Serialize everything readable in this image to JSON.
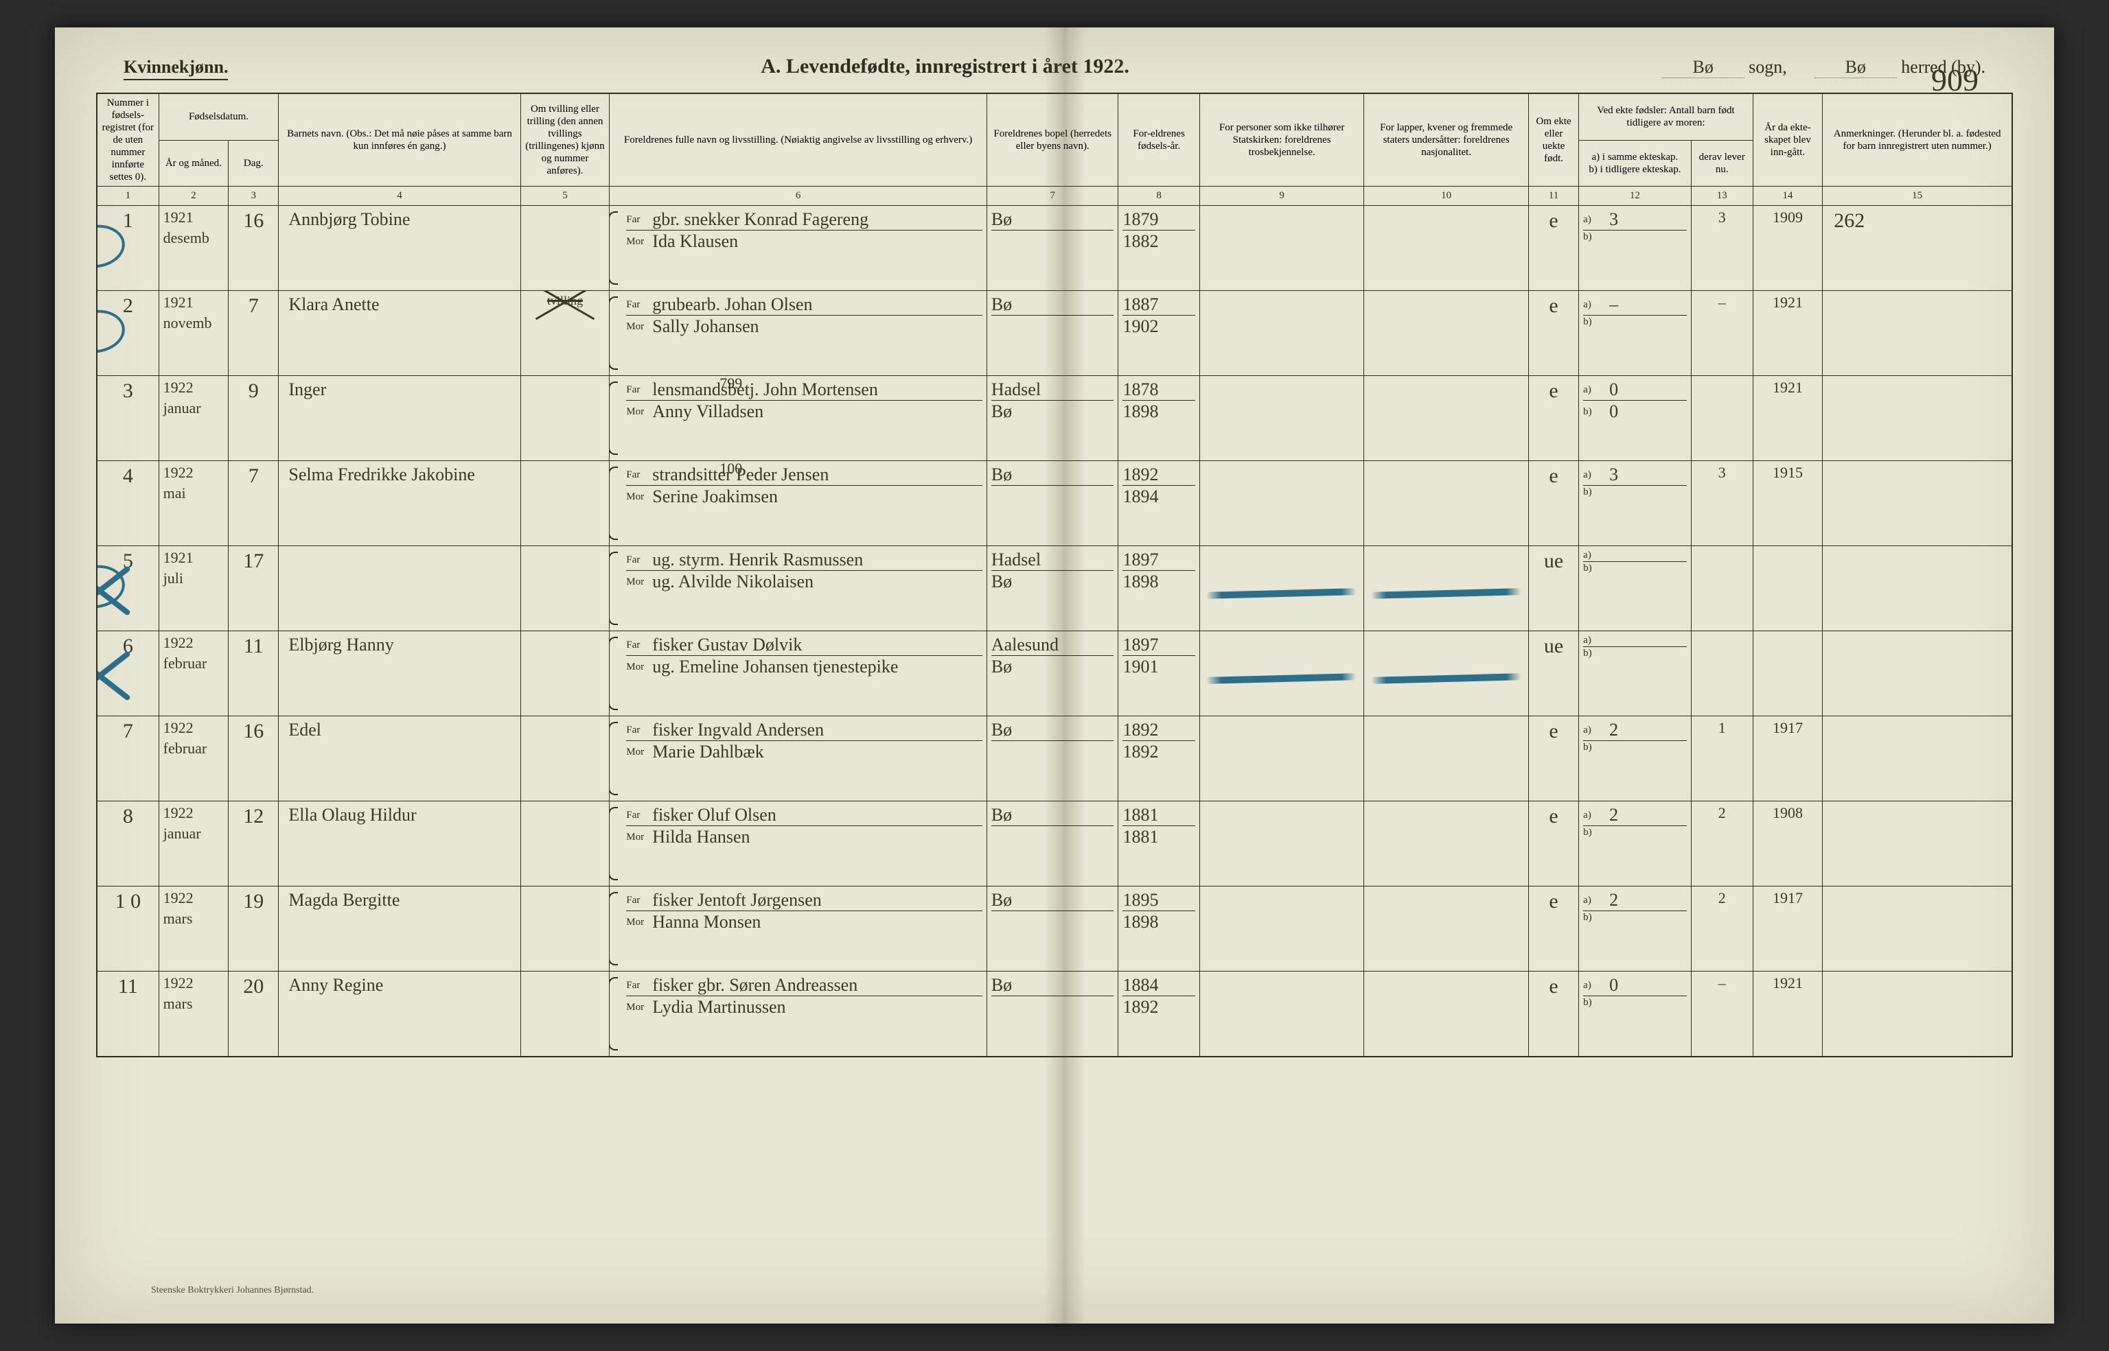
{
  "colors": {
    "paper": "#e8e6d4",
    "ink_print": "#2f2d20",
    "ink_hand": "#3a3826",
    "blue_pencil": "#2b6f8a",
    "page_bg": "#2b2b2b"
  },
  "header": {
    "gender_label": "Kvinnekjønn.",
    "title_prefix": "A. Levendefødte, innregistrert i året 192",
    "title_year_suffix": "2",
    "title_period": ".",
    "sogn_value": "Bø",
    "sogn_label": "sogn,",
    "herred_value": "Bø",
    "herred_label": "herred (by).",
    "page_corner": "909"
  },
  "footer": {
    "printer": "Steenske Boktrykkeri Johannes Bjørnstad."
  },
  "columns": {
    "c1": "Nummer i fødsels-registret (for de uten nummer innførte settes 0).",
    "c2_group": "Fødselsdatum.",
    "c2a": "År og måned.",
    "c2b": "Dag.",
    "c4": "Barnets navn.\n(Obs.: Det må nøie påses at samme barn kun innføres én gang.)",
    "c5": "Om tvilling eller trilling (den annen tvillings (trillingenes) kjønn og nummer anføres).",
    "c6": "Foreldrenes fulle navn og livsstilling.\n(Nøiaktig angivelse av livsstilling og erhverv.)",
    "c7": "Foreldrenes bopel (herredets eller byens navn).",
    "c8": "For-eldrenes fødsels-år.",
    "c9": "For personer som ikke tilhører Statskirken: foreldrenes trosbekjennelse.",
    "c10": "For lapper, kvener og fremmede staters undersåtter: foreldrenes nasjonalitet.",
    "c11": "Om ekte eller uekte født.",
    "c12_group": "Ved ekte fødsler: Antall barn født tidligere av moren:",
    "c12a": "a) i samme ekteskap.",
    "c12b": "b) i tidligere ekteskap.",
    "c13": "derav lever nu.",
    "c14": "År da ekte-skapet blev inn-gått.",
    "c15": "Anmerkninger.\n(Herunder bl. a. fødested for barn innregistrert uten nummer.)",
    "far_label": "Far",
    "mor_label": "Mor",
    "a_label": "a)",
    "b_label": "b)"
  },
  "colnums": [
    "1",
    "2",
    "3",
    "4",
    "5",
    "6",
    "7",
    "8",
    "9",
    "10",
    "11",
    "12",
    "13",
    "14",
    "15"
  ],
  "rows": [
    {
      "n": "1",
      "circled": true,
      "x": false,
      "year": "1921",
      "month": "desemb",
      "day": "16",
      "child": "Annbjørg Tobine",
      "twin": "",
      "far": "gbr. snekker Konrad Fagereng",
      "mor": "Ida Klausen",
      "res": "Bø",
      "far_yr": "1879",
      "mor_yr": "1882",
      "leg": "e",
      "ch_a": "3",
      "ch_b": "",
      "live": "3",
      "mar": "1909",
      "note": "262",
      "strike_910": false
    },
    {
      "n": "2",
      "circled": true,
      "x": false,
      "year": "1921",
      "month": "novemb",
      "day": "7",
      "child": "Klara Anette",
      "twin": "tvilling",
      "twin_struck": true,
      "far": "grubearb. Johan Olsen",
      "mor": "Sally Johansen",
      "res": "Bø",
      "far_yr": "1887",
      "mor_yr": "1902",
      "leg": "e",
      "ch_a": "–",
      "ch_b": "",
      "live": "–",
      "mar": "1921",
      "note": "",
      "strike_910": false
    },
    {
      "n": "3",
      "circled": false,
      "x": false,
      "year": "1922",
      "month": "januar",
      "day": "9",
      "child": "Inger",
      "twin": "",
      "far": "lensmandsbetj. John Mortensen",
      "far_note": "799",
      "mor": "Anny Villadsen",
      "res": "Hadsel",
      "res2": "Bø",
      "far_yr": "1878",
      "mor_yr": "1898",
      "leg": "e",
      "ch_a": "0",
      "ch_b": "0",
      "live": "",
      "mar": "1921",
      "note": "",
      "strike_910": false
    },
    {
      "n": "4",
      "circled": false,
      "x": false,
      "year": "1922",
      "month": "mai",
      "day": "7",
      "child": "Selma Fredrikke Jakobine",
      "twin": "",
      "far": "strandsitter Peder Jensen",
      "far_note": "100",
      "mor": "Serine Joakimsen",
      "res": "Bø",
      "far_yr": "1892",
      "mor_yr": "1894",
      "leg": "e",
      "ch_a": "3",
      "ch_b": "",
      "live": "3",
      "mar": "1915",
      "note": "",
      "strike_910": false
    },
    {
      "n": "5",
      "circled": true,
      "x": true,
      "year": "1921",
      "month": "juli",
      "day": "17",
      "child": "",
      "twin": "",
      "far": "ug. styrm. Henrik Rasmussen",
      "mor": "ug. Alvilde Nikolaisen",
      "res": "Hadsel",
      "res2": "Bø",
      "far_yr": "1897",
      "mor_yr": "1898",
      "leg": "ue",
      "ch_a": "",
      "ch_b": "",
      "live": "",
      "mar": "",
      "note": "",
      "strike_910": true
    },
    {
      "n": "6",
      "circled": false,
      "x": true,
      "year": "1922",
      "month": "februar",
      "day": "11",
      "child": "Elbjørg Hanny",
      "twin": "",
      "far": "fisker Gustav Dølvik",
      "mor": "ug. Emeline Johansen tjenestepike",
      "res": "Aalesund",
      "res2": "Bø",
      "far_yr": "1897",
      "mor_yr": "1901",
      "leg": "ue",
      "ch_a": "",
      "ch_b": "",
      "live": "",
      "mar": "",
      "note": "",
      "strike_910": true
    },
    {
      "n": "7",
      "circled": false,
      "x": false,
      "year": "1922",
      "month": "februar",
      "day": "16",
      "child": "Edel",
      "twin": "",
      "far": "fisker Ingvald Andersen",
      "mor": "Marie Dahlbæk",
      "res": "Bø",
      "far_yr": "1892",
      "mor_yr": "1892",
      "leg": "e",
      "ch_a": "2",
      "ch_b": "",
      "live": "1",
      "mar": "1917",
      "note": "",
      "strike_910": false
    },
    {
      "n": "8",
      "circled": false,
      "x": false,
      "year": "1922",
      "month": "januar",
      "day": "12",
      "child": "Ella Olaug Hildur",
      "twin": "",
      "far": "fisker Oluf Olsen",
      "mor": "Hilda Hansen",
      "res": "Bø",
      "far_yr": "1881",
      "mor_yr": "1881",
      "leg": "e",
      "ch_a": "2",
      "ch_b": "",
      "live": "2",
      "mar": "1908",
      "note": "",
      "strike_910": false
    },
    {
      "n": "10",
      "n_display": "1 0",
      "circled": false,
      "x": false,
      "year": "1922",
      "month": "mars",
      "day": "19",
      "child": "Magda Bergitte",
      "twin": "",
      "far": "fisker Jentoft Jørgensen",
      "mor": "Hanna Monsen",
      "res": "Bø",
      "far_yr": "1895",
      "mor_yr": "1898",
      "leg": "e",
      "ch_a": "2",
      "ch_b": "",
      "live": "2",
      "mar": "1917",
      "note": "",
      "strike_910": false
    },
    {
      "n": "11",
      "circled": false,
      "x": false,
      "year": "1922",
      "month": "mars",
      "day": "20",
      "child": "Anny Regine",
      "twin": "",
      "far": "fisker gbr. Søren Andreassen",
      "mor": "Lydia Martinussen",
      "res": "Bø",
      "far_yr": "1884",
      "mor_yr": "1892",
      "leg": "e",
      "ch_a": "0",
      "ch_b": "",
      "live": "–",
      "mar": "1921",
      "note": "",
      "strike_910": false
    }
  ]
}
